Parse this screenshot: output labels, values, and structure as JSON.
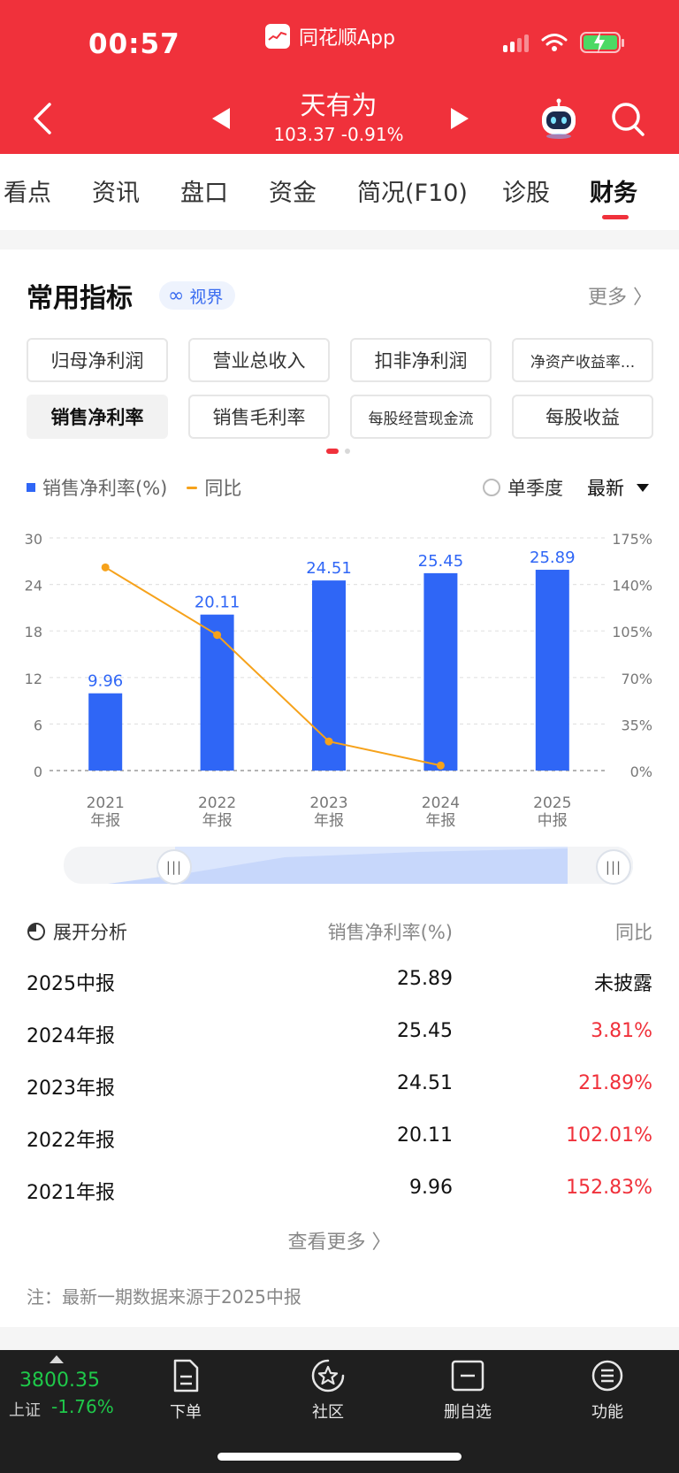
{
  "status_bar": {
    "time": "00:57",
    "app_name": "同花顺App"
  },
  "header": {
    "stock_name": "天有为",
    "price_line": "103.37  -0.91%"
  },
  "tabs": [
    {
      "label": "看点"
    },
    {
      "label": "资讯"
    },
    {
      "label": "盘口"
    },
    {
      "label": "资金"
    },
    {
      "label": "简况(F10)"
    },
    {
      "label": "诊股"
    },
    {
      "label": "财务",
      "active": true
    }
  ],
  "section": {
    "title": "常用指标",
    "badge": "视界",
    "more": "更多 〉"
  },
  "chips": [
    {
      "label": "归母净利润"
    },
    {
      "label": "营业总收入"
    },
    {
      "label": "扣非净利润"
    },
    {
      "label": "净资产收益率..."
    },
    {
      "label": "销售净利率",
      "selected": true
    },
    {
      "label": "销售毛利率"
    },
    {
      "label": "每股经营现金流"
    },
    {
      "label": "每股收益"
    }
  ],
  "legend": {
    "bar": "销售净利率(%)",
    "line": "同比",
    "single_quarter": "单季度",
    "period_select": "最新"
  },
  "colors": {
    "brand_red": "#f0313b",
    "bar_blue": "#2f66f6",
    "line_orange": "#f6a21b",
    "up_red": "#f0313b",
    "down_green": "#1fc94a"
  },
  "chart_data": {
    "type": "bar",
    "categories": [
      "2021\n年报",
      "2022\n年报",
      "2023\n年报",
      "2024\n年报",
      "2025\n中报"
    ],
    "series": [
      {
        "name": "销售净利率(%)",
        "type": "bar",
        "values": [
          9.96,
          20.11,
          24.51,
          25.45,
          25.89
        ]
      },
      {
        "name": "同比",
        "type": "line",
        "axis": "right",
        "values": [
          152.83,
          102.01,
          21.89,
          3.81,
          null
        ]
      }
    ],
    "left_axis": {
      "ticks": [
        "30",
        "24",
        "18",
        "12",
        "6",
        "0"
      ],
      "ylim": [
        0,
        30
      ]
    },
    "right_axis": {
      "ticks": [
        "175%",
        "140%",
        "105%",
        "70%",
        "35%",
        "0%"
      ],
      "ylim": [
        0,
        175
      ]
    },
    "data_labels": [
      "9.96",
      "20.11",
      "24.51",
      "25.45",
      "25.89"
    ],
    "grid": true,
    "legend_position": "top-left"
  },
  "table": {
    "head": {
      "title": "展开分析",
      "col2": "销售净利率(%)",
      "col3": "同比"
    },
    "rows": [
      {
        "period": "2025中报",
        "value": "25.89",
        "yoy": "未披露"
      },
      {
        "period": "2024年报",
        "value": "25.45",
        "yoy": "3.81%"
      },
      {
        "period": "2023年报",
        "value": "24.51",
        "yoy": "21.89%"
      },
      {
        "period": "2022年报",
        "value": "20.11",
        "yoy": "102.01%"
      },
      {
        "period": "2021年报",
        "value": "9.96",
        "yoy": "152.83%"
      }
    ],
    "see_more": "查看更多 〉",
    "note": "注：最新一期数据来源于2025中报"
  },
  "bottom": {
    "index_value": "3800.35",
    "index_name": "上证",
    "index_change": "-1.76%",
    "nav": [
      {
        "label": "下单",
        "icon": "document-icon"
      },
      {
        "label": "社区",
        "icon": "star-circle-icon"
      },
      {
        "label": "删自选",
        "icon": "minus-box-icon"
      },
      {
        "label": "功能",
        "icon": "menu-circle-icon"
      }
    ]
  }
}
